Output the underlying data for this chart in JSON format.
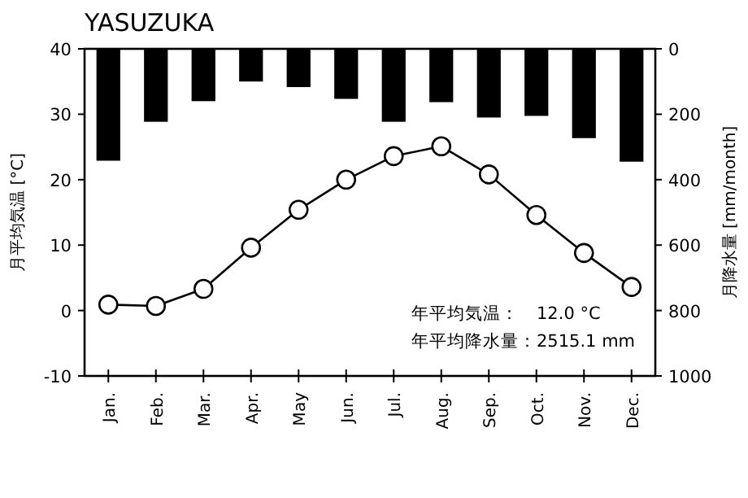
{
  "chart_data": {
    "type": "bar",
    "title": "YASUZUKA",
    "ylabel": "月平均気温 [°C]",
    "y2label": "月降水量 [mm/month]",
    "categories": [
      "Jan.",
      "Feb.",
      "Mar.",
      "Apr.",
      "May",
      "Jun.",
      "Jul.",
      "Aug.",
      "Sep.",
      "Oct.",
      "Nov.",
      "Dec."
    ],
    "series": [
      {
        "axis": "y2",
        "color": "#000000",
        "values": [
          342,
          223,
          160,
          100,
          117,
          153,
          223,
          163,
          210,
          205,
          273,
          345
        ]
      },
      {
        "type": "line",
        "axis": "y",
        "color": "#000000",
        "marker": "circle",
        "values": [
          0.9,
          0.7,
          3.3,
          9.6,
          15.4,
          20.0,
          23.6,
          25.1,
          20.8,
          14.6,
          8.8,
          3.6
        ]
      }
    ],
    "ylim": [
      -10,
      40
    ],
    "yticks": [
      -10,
      0,
      10,
      20,
      30,
      40
    ],
    "y2lim": [
      1000,
      0
    ],
    "y2ticks": [
      0,
      200,
      400,
      600,
      800,
      1000
    ],
    "annotations": [
      "年平均気温：　12.0 °C",
      "年平均降水量：2515.1 mm"
    ]
  }
}
